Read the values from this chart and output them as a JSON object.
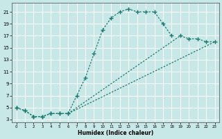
{
  "background_color": "#c8e8e8",
  "grid_color": "#b0d8d8",
  "line_color": "#1a7a6e",
  "xlabel": "Humidex (Indice chaleur)",
  "xlim": [
    -0.5,
    23.5
  ],
  "ylim": [
    2.5,
    22.5
  ],
  "xticks": [
    0,
    1,
    2,
    3,
    4,
    5,
    6,
    7,
    8,
    9,
    10,
    11,
    12,
    13,
    14,
    15,
    16,
    17,
    18,
    19,
    20,
    21,
    22,
    23
  ],
  "yticks": [
    3,
    5,
    7,
    9,
    11,
    13,
    15,
    17,
    19,
    21
  ],
  "curve_x": [
    0,
    1,
    2,
    3,
    4,
    5,
    6,
    7,
    8,
    9,
    10,
    11,
    12,
    13,
    14,
    15,
    16,
    17,
    18
  ],
  "curve_y": [
    5,
    4.5,
    3.5,
    3.5,
    4,
    4,
    4,
    7,
    10,
    14,
    18,
    20,
    21,
    21.5,
    21,
    21,
    21,
    19,
    17
  ],
  "line2_x": [
    0,
    1,
    2,
    3,
    4,
    5,
    6,
    19,
    20,
    21,
    22,
    23
  ],
  "line2_y": [
    5,
    4.5,
    3.5,
    3.5,
    4,
    4,
    4,
    17,
    16.5,
    16.5,
    16,
    16
  ],
  "line3_x": [
    6,
    23
  ],
  "line3_y": [
    4,
    16
  ]
}
